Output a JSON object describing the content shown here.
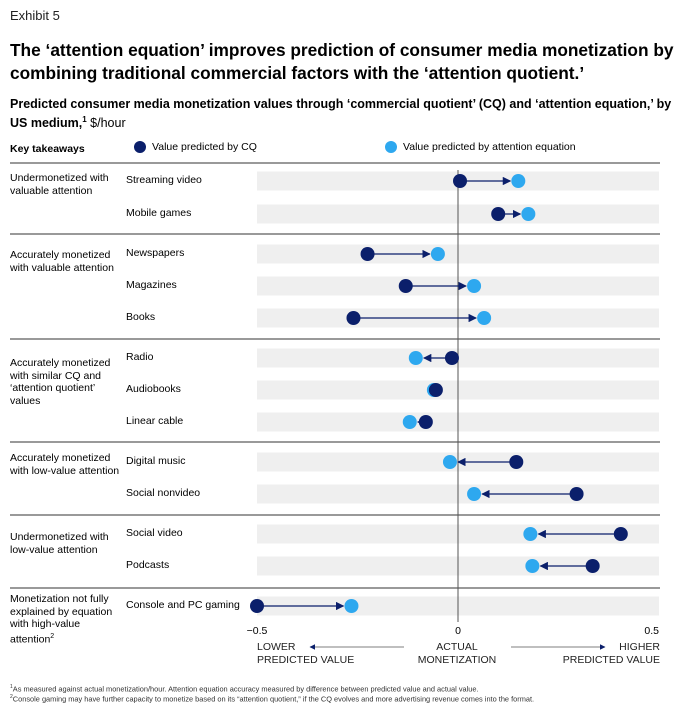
{
  "exhibit_label": "Exhibit 5",
  "title": "The ‘attention equation’ improves prediction of consumer media monetization by combining traditional commercial factors with the ‘attention quotient.’",
  "subtitle": "Predicted consumer media monetization values through ‘commercial quotient’ (CQ) and ‘attention equation,’ by US medium,",
  "subtitle_sup": "1",
  "subtitle_unit": " $/hour",
  "key_takeaways_label": "Key takeaways",
  "colors": {
    "cq": "#0b1f6b",
    "attention": "#2ea8ef",
    "band": "#efefef",
    "arrow": "#0b1f6b"
  },
  "chart_data": {
    "type": "dumbbell",
    "xlim": [
      -0.5,
      0.5
    ],
    "x_ticks": [
      -0.5,
      0,
      0.5
    ],
    "x_tick_labels": [
      "−0.5",
      "0",
      "0.5"
    ],
    "axis_captions": {
      "left": [
        "LOWER",
        "PREDICTED VALUE"
      ],
      "center": [
        "ACTUAL",
        "MONETIZATION"
      ],
      "right": [
        "HIGHER",
        "PREDICTED VALUE"
      ]
    },
    "legend": [
      {
        "key": "cq",
        "label": "Value predicted by CQ"
      },
      {
        "key": "attention",
        "label": "Value predicted by attention equation"
      }
    ],
    "groups": [
      {
        "label": "Undermonetized with valuable attention",
        "sup": "",
        "rows": [
          {
            "name": "Streaming video",
            "cq": 0.005,
            "attention": 0.15
          },
          {
            "name": "Mobile games",
            "cq": 0.1,
            "attention": 0.175
          }
        ]
      },
      {
        "label": "Accurately monetized with valuable attention",
        "sup": "",
        "rows": [
          {
            "name": "Newspapers",
            "cq": -0.225,
            "attention": -0.05
          },
          {
            "name": "Magazines",
            "cq": -0.13,
            "attention": 0.04
          },
          {
            "name": "Books",
            "cq": -0.26,
            "attention": 0.065
          }
        ]
      },
      {
        "label": "Accurately monetized with similar CQ and ‘attention quotient’ values",
        "sup": "",
        "rows": [
          {
            "name": "Radio",
            "cq": -0.015,
            "attention": -0.105
          },
          {
            "name": "Audiobooks",
            "cq": -0.055,
            "attention": -0.06
          },
          {
            "name": "Linear cable",
            "cq": -0.08,
            "attention": -0.12
          }
        ]
      },
      {
        "label": "Accurately monetized with low-value attention",
        "sup": "",
        "rows": [
          {
            "name": "Digital music",
            "cq": 0.145,
            "attention": -0.02
          },
          {
            "name": "Social nonvideo",
            "cq": 0.295,
            "attention": 0.04
          }
        ]
      },
      {
        "label": "Undermonetized with low-value attention",
        "sup": "",
        "rows": [
          {
            "name": "Social video",
            "cq": 0.405,
            "attention": 0.18
          },
          {
            "name": "Podcasts",
            "cq": 0.335,
            "attention": 0.185
          }
        ]
      },
      {
        "label": "Monetization not fully explained by equation with high-value attention",
        "sup": "2",
        "rows": [
          {
            "name": "Console and PC gaming",
            "cq": -0.5,
            "attention": -0.265
          }
        ]
      }
    ]
  },
  "footnotes": [
    {
      "sup": "1",
      "text": "As measured against actual monetization/hour. Attention equation accuracy measured by difference between predicted value and actual value."
    },
    {
      "sup": "2",
      "text": "Console gaming may have further capacity to monetize based on its “attention quotient,” if the CQ evolves and more advertising revenue comes into the format."
    }
  ]
}
